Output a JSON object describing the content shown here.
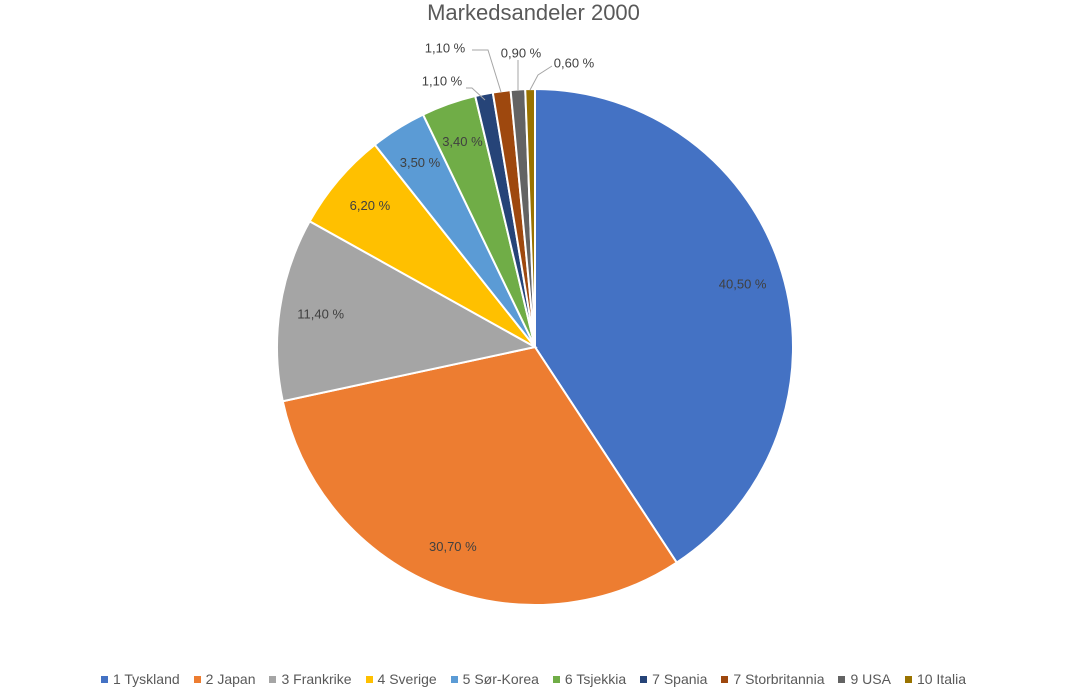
{
  "chart_data": {
    "type": "pie",
    "title": "Markedsandeler 2000",
    "categories": [
      "1 Tyskland",
      "2 Japan",
      "3 Frankrike",
      "4 Sverige",
      "5 Sør-Korea",
      "6 Tsjekkia",
      "7 Spania",
      "7 Storbritannia",
      "9 USA",
      "10 Italia"
    ],
    "values": [
      40.5,
      30.7,
      11.4,
      6.2,
      3.5,
      3.4,
      1.1,
      1.1,
      0.9,
      0.6
    ],
    "data_labels": [
      "40,50 %",
      "30,70 %",
      "11,40 %",
      "6,20 %",
      "3,50 %",
      "3,40 %",
      "1,10 %",
      "1,10 %",
      "0,90 %",
      "0,60 %"
    ],
    "colors": [
      "#4472c4",
      "#ed7d31",
      "#a5a5a5",
      "#ffc000",
      "#5b9bd5",
      "#70ad47",
      "#264478",
      "#9e480e",
      "#636363",
      "#997300"
    ],
    "legend_position": "bottom"
  }
}
